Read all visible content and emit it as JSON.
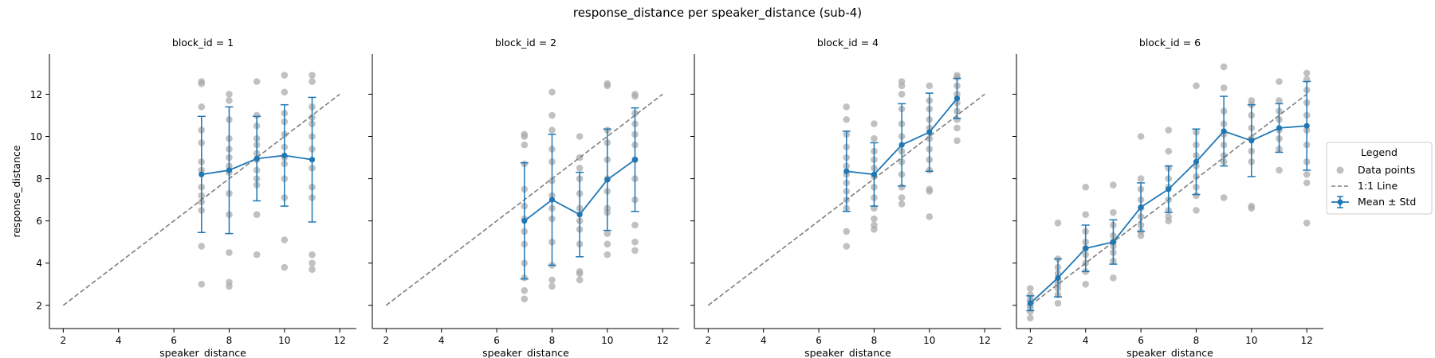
{
  "figure": {
    "title": "response_distance per speaker_distance (sub-4)"
  },
  "legend": {
    "title": "Legend",
    "entries": [
      "Data points",
      "1:1 Line",
      "Mean ± Std"
    ]
  },
  "colors": {
    "data_points": "#a9a9a9",
    "identity_line": "#7f7f7f",
    "mean": "#1f77b4",
    "axes": "#000000"
  },
  "chart_data": [
    {
      "type": "scatter",
      "title": "block_id = 1",
      "xlabel": "speaker_distance",
      "ylabel": "response_distance",
      "xlim": [
        1.5,
        12.6
      ],
      "ylim": [
        0.9,
        13.9
      ],
      "xticks": [
        2,
        4,
        6,
        8,
        10,
        12
      ],
      "yticks": [
        2,
        4,
        6,
        8,
        10,
        12
      ],
      "identity_line": [
        2,
        12
      ],
      "mean_std": {
        "name": "Mean ± Std",
        "x": [
          7,
          8,
          9,
          10,
          11
        ],
        "mean": [
          8.2,
          8.4,
          8.95,
          9.1,
          8.9
        ],
        "std": [
          2.75,
          3.0,
          2.0,
          2.4,
          2.95
        ]
      },
      "points": [
        {
          "x": 7,
          "y": [
            12.6,
            12.5,
            11.4,
            10.3,
            9.7,
            8.8,
            8.4,
            7.6,
            7.2,
            6.9,
            6.5,
            4.8,
            3.0
          ]
        },
        {
          "x": 8,
          "y": [
            12.0,
            11.7,
            10.8,
            9.9,
            9.4,
            9.0,
            8.6,
            8.3,
            7.3,
            6.3,
            4.5,
            3.1,
            2.9
          ]
        },
        {
          "x": 9,
          "y": [
            12.6,
            11.0,
            10.5,
            9.9,
            9.6,
            9.2,
            8.9,
            8.4,
            8.0,
            7.7,
            6.3,
            4.4
          ]
        },
        {
          "x": 10,
          "y": [
            12.9,
            12.1,
            11.1,
            10.7,
            10.1,
            9.5,
            9.0,
            8.7,
            8.0,
            7.1,
            5.1,
            3.8
          ]
        },
        {
          "x": 11,
          "y": [
            12.9,
            12.6,
            11.4,
            10.9,
            10.6,
            10.0,
            9.4,
            8.5,
            7.6,
            7.1,
            4.4,
            4.0,
            3.7
          ]
        }
      ]
    },
    {
      "type": "scatter",
      "title": "block_id = 2",
      "xlabel": "speaker_distance",
      "ylabel": "",
      "xlim": [
        1.5,
        12.6
      ],
      "ylim": [
        0.9,
        13.9
      ],
      "xticks": [
        2,
        4,
        6,
        8,
        10,
        12
      ],
      "yticks": [
        2,
        4,
        6,
        8,
        10,
        12
      ],
      "identity_line": [
        2,
        12
      ],
      "mean_std": {
        "name": "Mean ± Std",
        "x": [
          7,
          8,
          9,
          10,
          11
        ],
        "mean": [
          6.0,
          7.0,
          6.3,
          7.95,
          8.9
        ],
        "std": [
          2.75,
          3.1,
          2.0,
          2.4,
          2.45
        ]
      },
      "points": [
        {
          "x": 7,
          "y": [
            10.1,
            10.0,
            9.6,
            8.7,
            7.5,
            6.7,
            6.1,
            5.5,
            4.9,
            4.0,
            3.3,
            2.7,
            2.3
          ]
        },
        {
          "x": 8,
          "y": [
            12.1,
            11.0,
            10.3,
            9.4,
            8.8,
            7.9,
            7.2,
            6.6,
            6.1,
            5.0,
            3.9,
            3.2,
            2.9
          ]
        },
        {
          "x": 9,
          "y": [
            10.0,
            9.0,
            8.5,
            8.0,
            7.3,
            6.6,
            6.0,
            5.6,
            4.9,
            3.6,
            3.5,
            3.2
          ]
        },
        {
          "x": 10,
          "y": [
            12.5,
            12.4,
            10.3,
            9.7,
            8.9,
            8.0,
            7.4,
            6.6,
            6.4,
            5.4,
            4.9,
            4.4
          ]
        },
        {
          "x": 11,
          "y": [
            12.0,
            11.9,
            11.1,
            10.6,
            10.1,
            9.6,
            8.9,
            8.0,
            7.0,
            5.8,
            5.0,
            4.6
          ]
        }
      ]
    },
    {
      "type": "scatter",
      "title": "block_id = 4",
      "xlabel": "speaker_distance",
      "ylabel": "",
      "xlim": [
        1.5,
        12.6
      ],
      "ylim": [
        0.9,
        13.9
      ],
      "xticks": [
        2,
        4,
        6,
        8,
        10,
        12
      ],
      "yticks": [
        2,
        4,
        6,
        8,
        10,
        12
      ],
      "identity_line": [
        2,
        12
      ],
      "mean_std": {
        "name": "Mean ± Std",
        "x": [
          7,
          8,
          9,
          10,
          11
        ],
        "mean": [
          8.35,
          8.2,
          9.6,
          10.2,
          11.8
        ],
        "std": [
          1.9,
          1.5,
          1.95,
          1.85,
          0.95
        ]
      },
      "points": [
        {
          "x": 7,
          "y": [
            11.4,
            10.8,
            10.1,
            9.5,
            9.0,
            8.6,
            8.2,
            7.8,
            7.4,
            7.0,
            6.6,
            5.5,
            4.8
          ]
        },
        {
          "x": 8,
          "y": [
            10.6,
            9.9,
            9.3,
            8.9,
            8.5,
            8.1,
            7.6,
            7.1,
            6.6,
            6.1,
            5.8,
            5.6
          ]
        },
        {
          "x": 9,
          "y": [
            12.6,
            12.4,
            12.0,
            11.3,
            10.6,
            10.0,
            9.3,
            8.8,
            8.2,
            7.6,
            7.1,
            6.8
          ]
        },
        {
          "x": 10,
          "y": [
            12.4,
            11.7,
            11.3,
            10.8,
            10.4,
            9.9,
            9.4,
            8.9,
            8.4,
            7.5,
            7.4,
            6.2
          ]
        },
        {
          "x": 11,
          "y": [
            12.9,
            12.8,
            12.4,
            12.0,
            11.6,
            11.2,
            10.8,
            10.4,
            9.8
          ]
        }
      ]
    },
    {
      "type": "scatter",
      "title": "block_id = 6",
      "xlabel": "speaker_distance",
      "ylabel": "",
      "xlim": [
        1.5,
        12.6
      ],
      "ylim": [
        0.9,
        13.9
      ],
      "xticks": [
        2,
        4,
        6,
        8,
        10,
        12
      ],
      "yticks": [
        2,
        4,
        6,
        8,
        10,
        12
      ],
      "identity_line": [
        2,
        12
      ],
      "mean_std": {
        "name": "Mean ± Std",
        "x": [
          2,
          3,
          4,
          5,
          6,
          7,
          8,
          9,
          10,
          11,
          12
        ],
        "mean": [
          2.1,
          3.3,
          4.7,
          5.0,
          6.65,
          7.5,
          8.8,
          10.25,
          9.8,
          10.4,
          10.5
        ],
        "std": [
          0.35,
          0.9,
          1.1,
          1.05,
          1.15,
          1.1,
          1.55,
          1.65,
          1.7,
          1.15,
          2.1
        ]
      },
      "points": [
        {
          "x": 2,
          "y": [
            2.8,
            2.5,
            2.3,
            2.2,
            2.0,
            1.9,
            1.7,
            1.4
          ]
        },
        {
          "x": 3,
          "y": [
            5.9,
            4.2,
            3.8,
            3.5,
            3.2,
            3.0,
            2.8,
            2.5,
            2.1
          ]
        },
        {
          "x": 4,
          "y": [
            7.6,
            6.3,
            5.5,
            5.0,
            4.7,
            4.4,
            4.0,
            3.6,
            3.0
          ]
        },
        {
          "x": 5,
          "y": [
            7.7,
            6.4,
            5.8,
            5.3,
            5.0,
            4.8,
            4.5,
            4.1,
            3.3
          ]
        },
        {
          "x": 6,
          "y": [
            10.0,
            8.0,
            7.5,
            7.0,
            6.6,
            6.2,
            5.8,
            5.5,
            5.3
          ]
        },
        {
          "x": 7,
          "y": [
            10.3,
            9.3,
            8.5,
            8.0,
            7.6,
            7.0,
            6.5,
            6.2,
            6.0
          ]
        },
        {
          "x": 8,
          "y": [
            12.4,
            10.2,
            9.6,
            9.1,
            8.6,
            8.1,
            7.6,
            7.2,
            6.5
          ]
        },
        {
          "x": 9,
          "y": [
            13.3,
            12.3,
            11.2,
            10.6,
            10.1,
            9.6,
            9.1,
            8.8,
            7.1
          ]
        },
        {
          "x": 10,
          "y": [
            11.7,
            11.5,
            11.0,
            10.4,
            9.9,
            9.3,
            8.8,
            6.7,
            6.6
          ]
        },
        {
          "x": 11,
          "y": [
            12.6,
            11.7,
            11.2,
            10.8,
            10.3,
            9.9,
            9.4,
            8.4
          ]
        },
        {
          "x": 12,
          "y": [
            13.0,
            12.7,
            12.2,
            11.6,
            11.0,
            10.3,
            9.6,
            8.8,
            8.2,
            7.8,
            5.9
          ]
        }
      ]
    }
  ]
}
